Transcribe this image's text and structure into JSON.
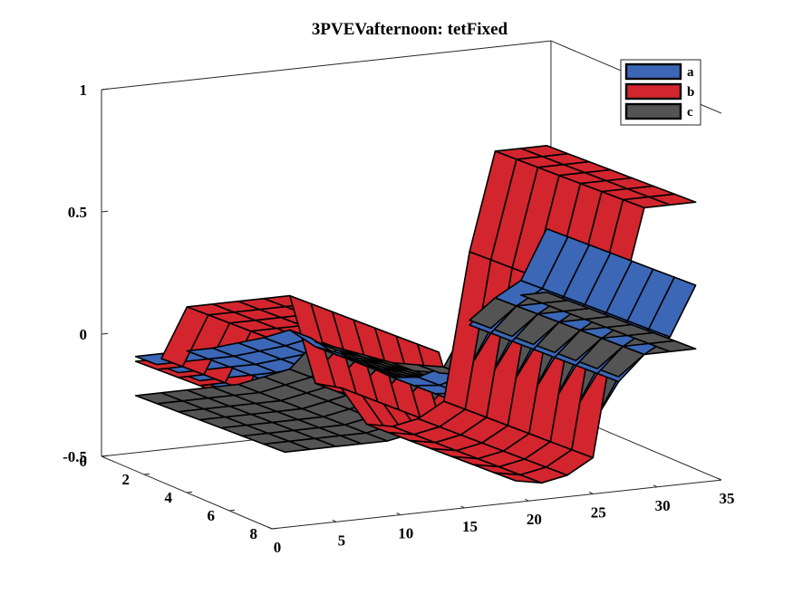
{
  "chart_data": {
    "type": "surface3d",
    "title": "3PVEVafternoon: tetFixed",
    "xlim": [
      0,
      35
    ],
    "ylim": [
      0,
      8
    ],
    "zlim": [
      -0.5,
      1
    ],
    "x_ticks": [
      "0",
      "5",
      "10",
      "15",
      "20",
      "25",
      "30",
      "35"
    ],
    "y_ticks": [
      "0",
      "2",
      "4",
      "6",
      "8"
    ],
    "z_ticks": [
      "-0.5",
      "0",
      "0.5",
      "1"
    ],
    "x_grid": [
      1,
      3,
      5,
      7,
      9,
      11,
      13,
      15,
      17,
      19,
      21,
      23,
      25,
      27,
      29,
      31,
      33
    ],
    "y_grid": [
      1,
      2,
      3,
      4,
      5,
      6,
      7,
      8
    ],
    "edge_color": "#000000",
    "legend": {
      "location": "top-right",
      "entries": [
        "a",
        "b",
        "c"
      ]
    },
    "series": [
      {
        "name": "a",
        "color": "#3b67b6",
        "profile": [
          -0.06,
          -0.06,
          -0.06,
          -0.06,
          -0.05,
          -0.04,
          -0.02,
          -0.1,
          -0.14,
          -0.2,
          -0.26,
          -0.27,
          -0.24,
          -0.08,
          0.02,
          0.08,
          0.28
        ],
        "y_variation": [
          0,
          0.004,
          0.008,
          0.012,
          0.016,
          0.02,
          0.024,
          0.028
        ]
      },
      {
        "name": "b",
        "color": "#d3252d",
        "profile": [
          -0.08,
          -0.08,
          0.12,
          0.12,
          0.12,
          0.12,
          0.12,
          -0.25,
          -0.28,
          -0.44,
          -0.46,
          -0.44,
          -0.38,
          0.22,
          0.62,
          0.62,
          0.62
        ],
        "y_variation": [
          0,
          0.004,
          0.008,
          0.012,
          0.016,
          0.02,
          0.024,
          0.028
        ]
      },
      {
        "name": "c",
        "color": "#545454",
        "profile": [
          -0.22,
          -0.22,
          -0.22,
          -0.22,
          -0.22,
          -0.2,
          -0.18,
          -0.08,
          -0.12,
          -0.16,
          -0.2,
          -0.22,
          -0.24,
          -0.06,
          0.02,
          0.02,
          0.02
        ],
        "y_variation": [
          0,
          0.004,
          0.008,
          0.012,
          0.016,
          0.02,
          0.024,
          0.028
        ]
      }
    ]
  }
}
